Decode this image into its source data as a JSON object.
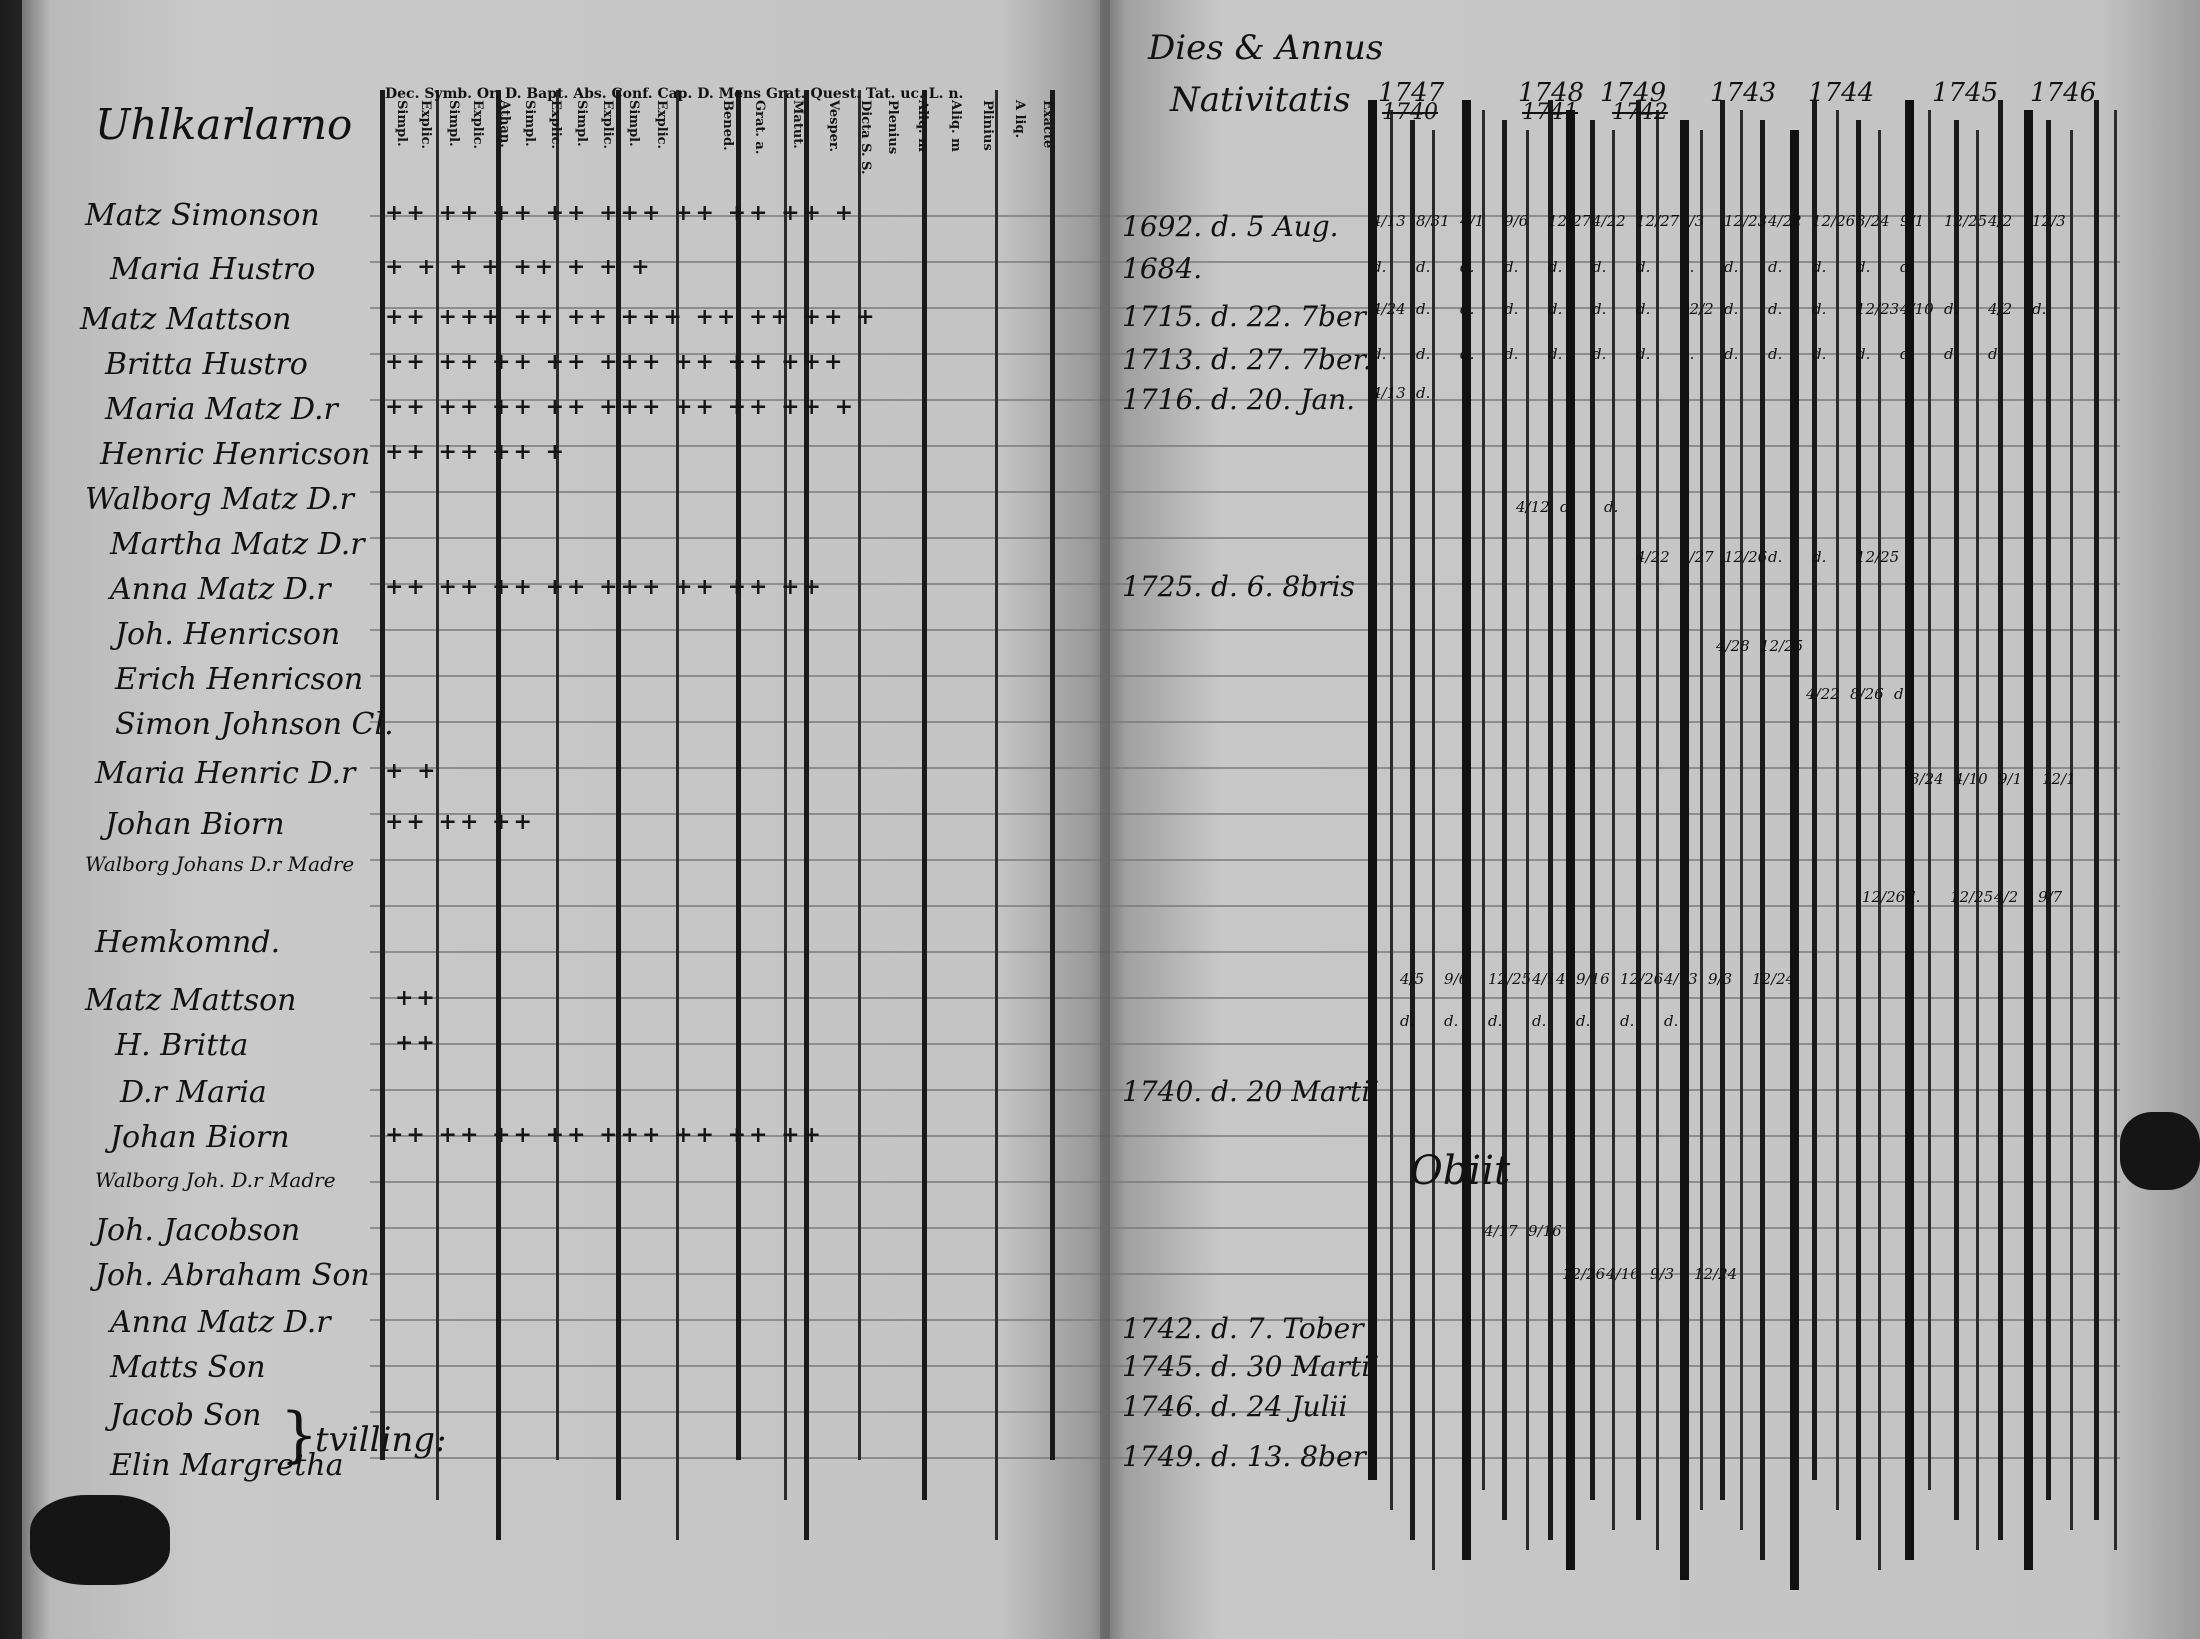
{
  "left_page": {
    "heading": "Uhlkarlarno",
    "column_headers": [
      "Dec. Symb. Or. D. Bapt.   Abs.   Conf. Cap. D. Mens Grat. Quest. Tat. uc. L. n.",
      "Simpl.",
      "Explic.",
      "Simpl.",
      "Explic.",
      "Athan.",
      "Simpl.",
      "Explic.",
      "Simpl.",
      "Explic.",
      "Simpl.",
      "Explic.",
      "Bened.",
      "Grat. a.",
      "Matut.",
      "Vesper.",
      "Dicta S. S.",
      "Plenius",
      "Aliq. m",
      "Aliq. m",
      "Plinius",
      "A liq.",
      "Exacte"
    ],
    "rows": [
      {
        "name": "Matz Simonson",
        "marks": "++ ++ ++ ++ +++ ++ ++ ++ +"
      },
      {
        "name": "Maria Hustro",
        "marks": "+ + + + ++ + + +"
      },
      {
        "name": "Matz Mattson",
        "marks": "++ +++ ++ ++ +++ ++ ++ ++ +"
      },
      {
        "name": "Britta Hustro",
        "marks": "++ ++ ++ ++ +++ ++ ++ +++"
      },
      {
        "name": "Maria Matz D.r",
        "marks": "++ ++ ++ ++ +++ ++ ++ ++ +"
      },
      {
        "name": "Henric Henricson",
        "marks": "++ ++ ++ +"
      },
      {
        "name": "Walborg Matz D.r",
        "marks": ""
      },
      {
        "name": "Martha Matz D.r",
        "marks": ""
      },
      {
        "name": "Anna Matz D.r",
        "marks": "++ ++ ++ ++ +++ ++ ++ ++"
      },
      {
        "name": "Joh. Henricson",
        "marks": ""
      },
      {
        "name": "Erich Henricson",
        "marks": ""
      },
      {
        "name": "Simon Johnson Cl.",
        "marks": ""
      },
      {
        "name": "Maria Henric D.r",
        "marks": "+ +"
      },
      {
        "name": "Johan Biorn",
        "marks": "++ ++ ++"
      },
      {
        "name": "Walborg Johans D.r Madre",
        "marks": ""
      },
      {
        "name": "Hemkomnd.",
        "marks": ""
      },
      {
        "name": "Matz Mattson",
        "marks": "++"
      },
      {
        "name": "H. Britta",
        "marks": "++"
      },
      {
        "name": "D.r Maria",
        "marks": ""
      },
      {
        "name": "Johan Biorn",
        "marks": "++ ++ ++ ++ +++ ++ ++ ++"
      },
      {
        "name": "Walborg Joh. D.r Madre",
        "marks": ""
      },
      {
        "name": "Joh. Jacobson",
        "marks": ""
      },
      {
        "name": "Joh. Abraham Son",
        "marks": ""
      },
      {
        "name": "Anna Matz D.r",
        "marks": ""
      },
      {
        "name": "Matts Son",
        "marks": ""
      },
      {
        "name": "Jacob Son",
        "marks": ""
      },
      {
        "name": "Elin Margretha",
        "marks": ""
      }
    ],
    "brace_note": "tvilling:"
  },
  "right_page": {
    "heading_line1": "Dies & Annus",
    "heading_line2": "Nativitatis",
    "years": [
      "1747",
      "1748",
      "1749",
      "1743",
      "1744",
      "1745",
      "1746"
    ],
    "years_struck": [
      "1740",
      "1741",
      "1742"
    ],
    "birth_dates": [
      "1692. d. 5 Aug.",
      "1684.",
      "1715. d. 22. 7ber",
      "1713. d. 27. 7ber.",
      "1716. d. 20. Jan.",
      "1725. d. 6. 8bris",
      "1740. d. 20 Martii",
      "1742. d. 7. Tober",
      "1745. d. 30 Martii",
      "1746. d. 24 Julii",
      "1749. d. 13. 8ber"
    ],
    "obiit_note": "Obiit",
    "entries": [
      [
        "4/13",
        "8/31",
        "4/1",
        "9/6",
        "12/27",
        "4/22",
        "12/27",
        "4/3",
        "12/23",
        "4/22",
        "12/26",
        "3/24",
        "9/1",
        "12/25",
        "4/2",
        "12/3"
      ],
      [
        "d.",
        "d.",
        "d.",
        "d.",
        "d.",
        "d.",
        "d.",
        "d.",
        "d.",
        "d.",
        "d.",
        "d.",
        "d."
      ],
      [
        "4/24",
        "d.",
        "d.",
        "d.",
        "d.",
        "d.",
        "d.",
        "12/2",
        "d.",
        "d.",
        "d.",
        "12/23",
        "4/10",
        "d.",
        "4/2",
        "d."
      ],
      [
        "d.",
        "d.",
        "d.",
        "d.",
        "d.",
        "d.",
        "d.",
        "d.",
        "d.",
        "d.",
        "d.",
        "d.",
        "d.",
        "d.",
        "d."
      ],
      [
        "4/13",
        "d."
      ],
      [
        "4/12",
        "d.",
        "d."
      ],
      [
        "4/22",
        "9/27",
        "12/26",
        "d.",
        "d.",
        "12/25"
      ],
      [
        "4/28",
        "12/25"
      ],
      [
        "4/22",
        "8/26",
        "d."
      ],
      [
        "3/24",
        "4/10",
        "9/1",
        "12/1"
      ],
      [
        "12/26",
        "d.",
        "12/25",
        "4/2",
        "9/7"
      ],
      [
        "4/5",
        "9/6",
        "12/25",
        "4/14",
        "9/16",
        "12/26",
        "4/13",
        "9/3",
        "12/24"
      ],
      [
        "d.",
        "d.",
        "d.",
        "d.",
        "d.",
        "d.",
        "d."
      ],
      [
        "4/17",
        "9/16"
      ],
      [
        "12/26",
        "4/16",
        "9/3",
        "12/24"
      ]
    ]
  }
}
